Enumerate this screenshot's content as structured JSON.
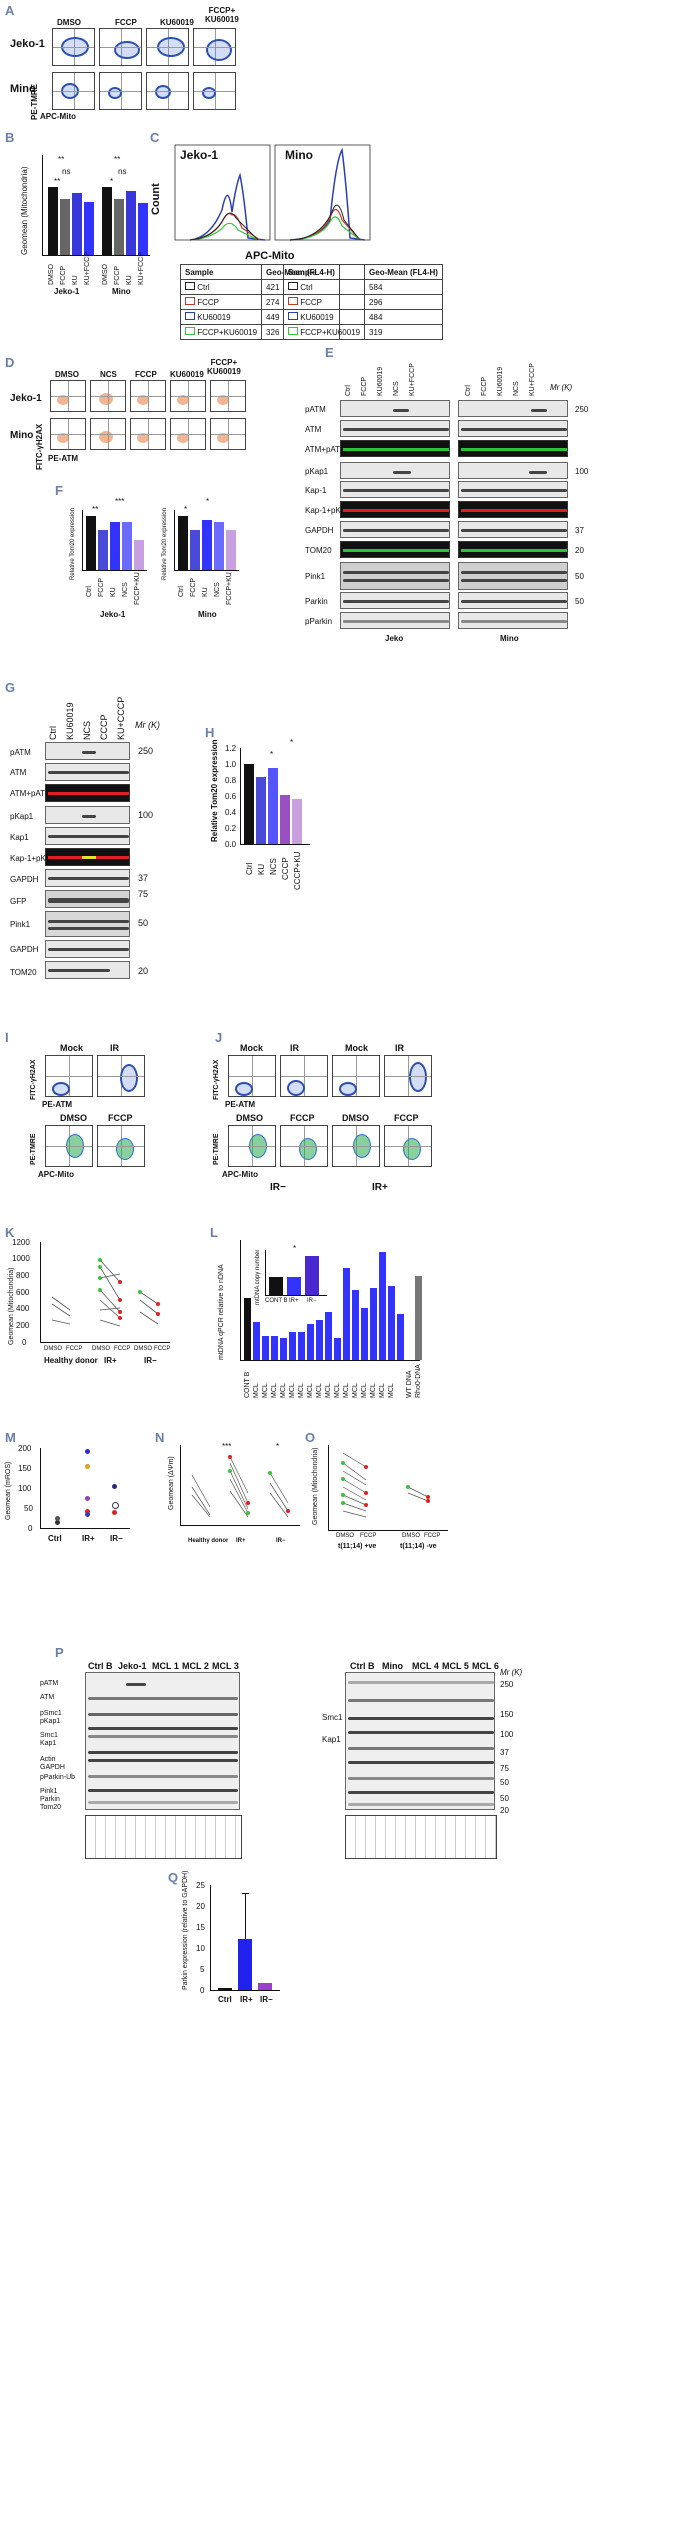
{
  "panels": {
    "A": "A",
    "B": "B",
    "C": "C",
    "D": "D",
    "E": "E",
    "F": "F",
    "G": "G",
    "H": "H",
    "I": "I",
    "J": "J",
    "K": "K",
    "L": "L",
    "M": "M",
    "N": "N",
    "O": "O",
    "P": "P",
    "Q": "Q"
  },
  "panel_a": {
    "columns": [
      "DMSO",
      "FCCP",
      "KU60019",
      "FCCP+\nKU60019"
    ],
    "rows": [
      "Jeko-1",
      "Mino"
    ],
    "ylabel": "PE-TMRE",
    "xlabel": "APC-Mito"
  },
  "panel_b": {
    "ylabel": "Geomean (Mitochondria)",
    "groups": [
      "Jeko-1",
      "Mino"
    ],
    "categories": [
      "DMSO",
      "FCCP",
      "KU",
      "KU+FCCP"
    ],
    "sig": [
      "**",
      "ns",
      "**",
      "*",
      "**",
      "ns"
    ]
  },
  "panel_c": {
    "titles": [
      "Jeko-1",
      "Mino"
    ],
    "ylabel": "Count",
    "xlabel": "APC-Mito",
    "table_header": [
      "Sample",
      "Geo-Mean (FL4-H)"
    ],
    "jeko": [
      {
        "sample": "Ctrl",
        "value": "421",
        "color": "#222222"
      },
      {
        "sample": "FCCP",
        "value": "274",
        "color": "#c0392b"
      },
      {
        "sample": "KU60019",
        "value": "449",
        "color": "#2c3eb4"
      },
      {
        "sample": "FCCP+KU60019",
        "value": "326",
        "color": "#3cc23c"
      }
    ],
    "mino": [
      {
        "sample": "Ctrl",
        "value": "584",
        "color": "#222222"
      },
      {
        "sample": "FCCP",
        "value": "296",
        "color": "#c0392b"
      },
      {
        "sample": "KU60019",
        "value": "484",
        "color": "#2c3eb4"
      },
      {
        "sample": "FCCP+KU60019",
        "value": "319",
        "color": "#3cc23c"
      }
    ]
  },
  "panel_d": {
    "columns": [
      "DMSO",
      "NCS",
      "FCCP",
      "KU60019",
      "FCCP+\nKU60019"
    ],
    "rows": [
      "Jeko-1",
      "Mino"
    ],
    "ylabel": "FITC-γH2AX",
    "xlabel": "PE-ATM"
  },
  "panel_e": {
    "lanes": [
      "Ctrl",
      "FCCP",
      "KU60019",
      "NCS",
      "KU+FCCP"
    ],
    "lanes2": [
      "Ctrl",
      "FCCP",
      "KU60019",
      "NCS",
      "KU+FCCP"
    ],
    "rows": [
      "pATM",
      "ATM",
      "ATM+pATM",
      "pKap1",
      "Kap-1",
      "Kap-1+pKap-1",
      "GAPDH",
      "TOM20",
      "Pink1",
      "Parkin",
      "pParkin"
    ],
    "mw": [
      "250",
      "100",
      "37",
      "20",
      "50",
      "50"
    ],
    "mw_label": "Mr (K)",
    "footer": [
      "Jeko",
      "Mino"
    ]
  },
  "panel_f": {
    "ylabel": "Relative Tom20 expression",
    "groups": [
      "Jeko-1",
      "Mino"
    ],
    "categories": [
      "Ctrl",
      "FCCP",
      "KU",
      "NCS",
      "FCCP+KU"
    ]
  },
  "panel_g": {
    "lanes": [
      "Ctrl",
      "KU60019",
      "NCS",
      "CCCP",
      "KU+CCCP"
    ],
    "mw_label": "Mr (K)",
    "rows": [
      "pATM",
      "ATM",
      "ATM+pATM",
      "pKap1",
      "Kap1",
      "Kap-1+pKap-1",
      "GAPDH",
      "GFP",
      "Pink1",
      "GAPDH",
      "TOM20"
    ],
    "mw": [
      "250",
      "100",
      "37",
      "75",
      "50",
      "20"
    ]
  },
  "panel_h": {
    "ylabel": "Relative Tom20 expression",
    "categories": [
      "Ctrl",
      "KU",
      "NCS",
      "CCCP",
      "CCCP+KU"
    ],
    "yticks": [
      "0.0",
      "0.2",
      "0.4",
      "0.6",
      "0.8",
      "1.0",
      "1.2"
    ],
    "sig": [
      "*",
      "*"
    ]
  },
  "panel_i": {
    "top": [
      "Mock",
      "IR"
    ],
    "bottom": [
      "DMSO",
      "FCCP"
    ],
    "y1": "FITC-γH2AX",
    "x1": "PE-ATM",
    "y2": "PE-TMRE",
    "x2": "APC-Mito"
  },
  "panel_j": {
    "top": [
      "Mock",
      "IR",
      "Mock",
      "IR"
    ],
    "bottom": [
      "DMSO",
      "FCCP",
      "DMSO",
      "FCCP"
    ],
    "groups": [
      "IR−",
      "IR+"
    ],
    "y1": "FITC-γH2AX",
    "x1": "PE-ATM",
    "y2": "PE-TMRE",
    "x2": "APC-Mito"
  },
  "panel_k": {
    "ylabel": "Geomean (Mitochondria)",
    "yticks": [
      "0",
      "200",
      "400",
      "600",
      "800",
      "1000",
      "1200"
    ],
    "xcats": [
      "DMSO",
      "FCCP",
      "DMSO",
      "FCCP",
      "DMSO",
      "FCCP"
    ],
    "groups": [
      "Healthy donor",
      "IR+",
      "IR−"
    ]
  },
  "panel_l": {
    "ylabel": "mtDNA qPCR relative to nDNA",
    "inset_ylabel": "mtDNA copy number",
    "inset_cats": [
      "CONT B",
      "IR+",
      "IR−"
    ],
    "sig": "*",
    "xcats": [
      "CONT B",
      "MCL",
      "MCL",
      "MCL",
      "MCL",
      "MCL",
      "MCL",
      "MCL",
      "MCL",
      "MCL",
      "MCL",
      "MCL",
      "MCL",
      "MCL",
      "MCL",
      "MCL",
      "MCL",
      "WT DNA",
      "Rho0-DNA"
    ]
  },
  "panel_m": {
    "ylabel": "Geomean (mROS)",
    "yticks": [
      "0",
      "50",
      "100",
      "150",
      "200"
    ],
    "cats": [
      "Ctrl",
      "IR+",
      "IR−"
    ]
  },
  "panel_n": {
    "ylabel": "Geomean (ΔΨm)",
    "groups": [
      "Healthy donor",
      "IR+",
      "IR−"
    ],
    "sig": [
      "***",
      "*"
    ]
  },
  "panel_o": {
    "ylabel": "Geomean (Mitochondria)",
    "groups": [
      "t(11;14) +ve",
      "t(11;14) -ve"
    ],
    "xcats": [
      "DMSO",
      "FCCP",
      "DMSO",
      "FCCP"
    ]
  },
  "panel_p": {
    "left_lanes": [
      "Ctrl B",
      "Jeko-1",
      "MCL 1",
      "MCL 2",
      "MCL 3"
    ],
    "right_lanes": [
      "Ctrl B",
      "Mino",
      "MCL 4",
      "MCL 5",
      "MCL 6"
    ],
    "mw_label": "Mr (K)",
    "rows_left": [
      "pATM",
      "ATM",
      "pSmc1",
      "pKap1",
      "Smc1",
      "Kap1",
      "Actin",
      "GAPDH",
      "pParkin-Ub",
      "Pink1",
      "Parkin",
      "Tom20"
    ],
    "rows_right": [
      "Smc1",
      "Kap1"
    ],
    "mw": [
      "250",
      "150",
      "100",
      "37",
      "75",
      "50",
      "50",
      "20"
    ]
  },
  "panel_q": {
    "ylabel": "Parkin expression (relative to GAPDH)",
    "cats": [
      "Ctrl",
      "IR+",
      "IR−"
    ],
    "yticks": [
      "0",
      "5",
      "10",
      "15",
      "20",
      "25"
    ]
  }
}
